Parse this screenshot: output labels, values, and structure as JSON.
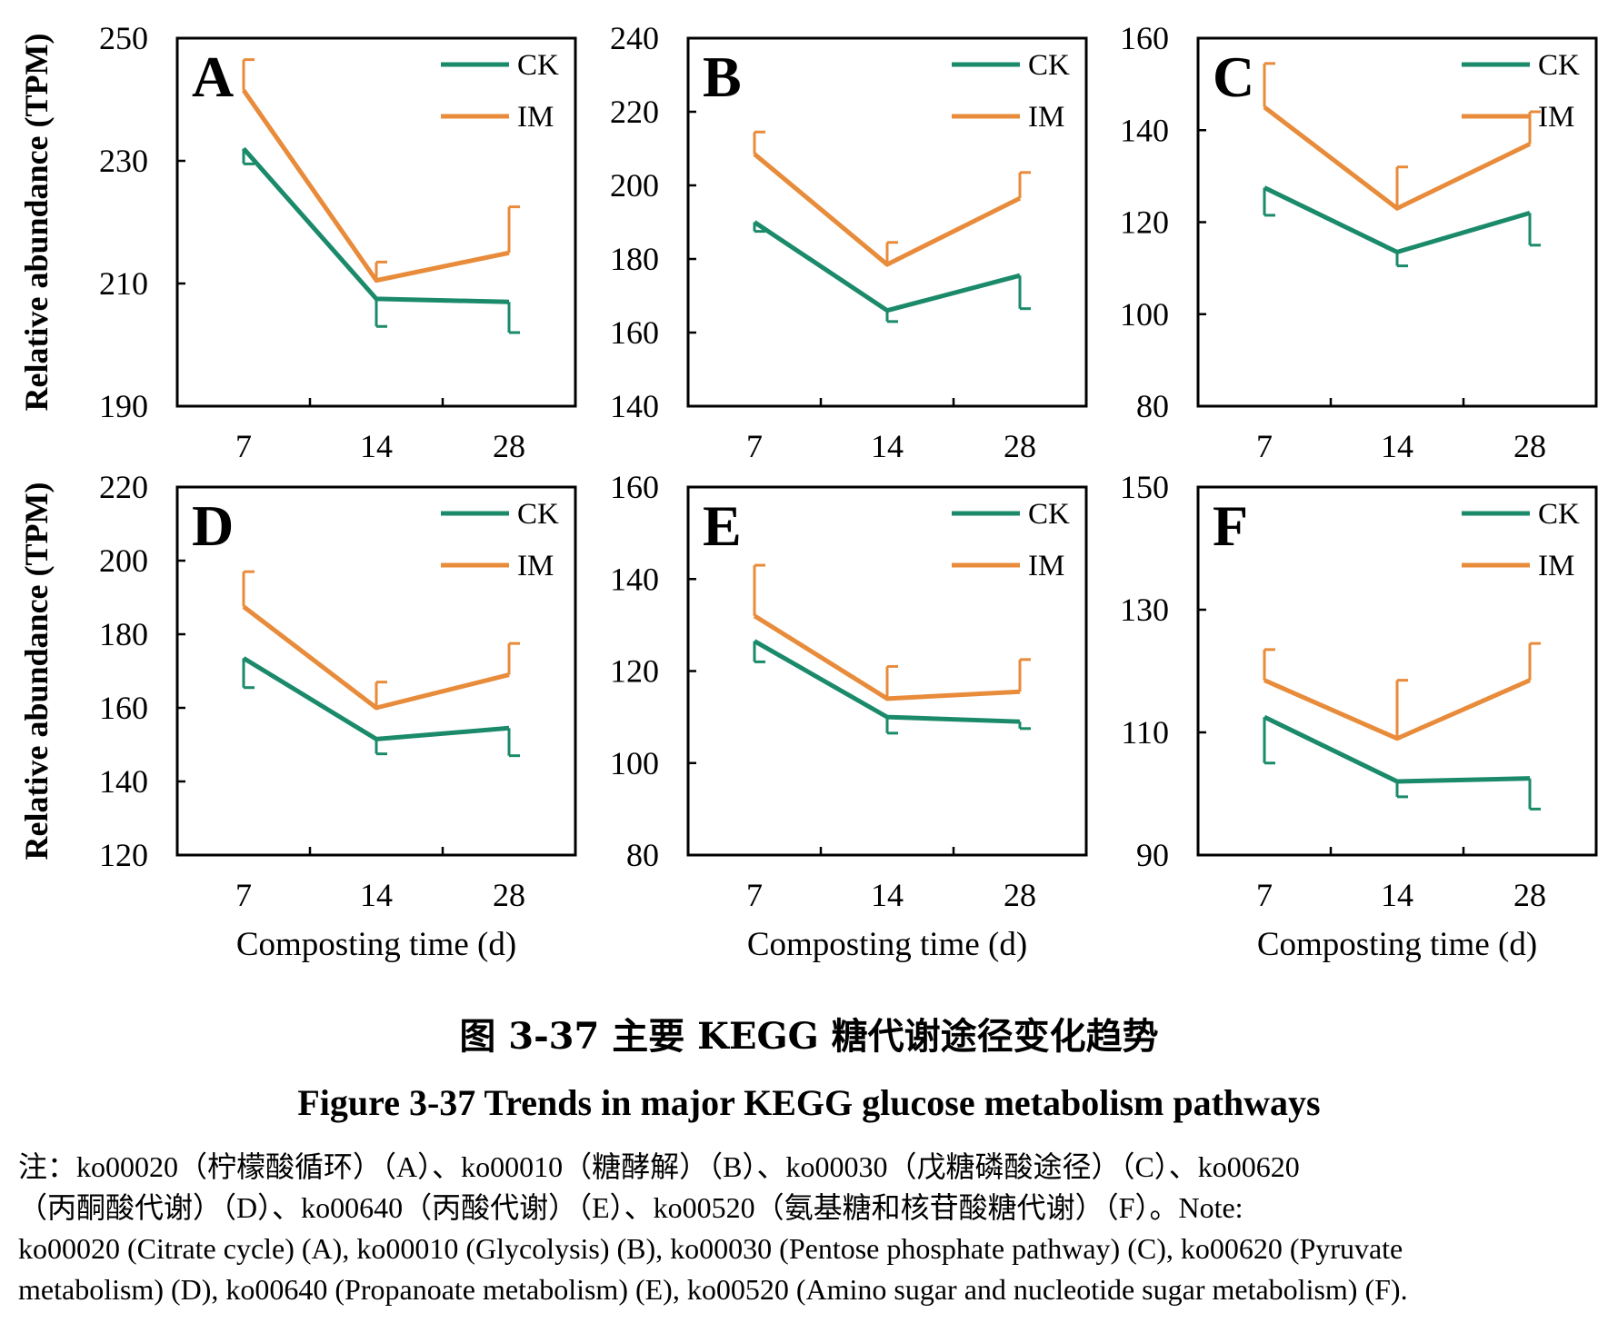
{
  "figure": {
    "caption_cn": "图 3-37 主要 KEGG 糖代谢途径变化趋势",
    "caption_en": "Figure 3-37 Trends in major KEGG glucose metabolism pathways",
    "note_lines": [
      "注：ko00020（柠檬酸循环）（A）、ko00010（糖酵解）（B）、ko00030（戊糖磷酸途径）（C）、ko00620",
      "（丙酮酸代谢）（D）、ko00640（丙酸代谢）（E）、ko00520（氨基糖和核苷酸糖代谢）（F）。Note:",
      "ko00020 (Citrate cycle) (A), ko00010 (Glycolysis) (B), ko00030 (Pentose phosphate pathway) (C), ko00620 (Pyruvate",
      "metabolism) (D), ko00640 (Propanoate metabolism)  (E), ko00520 (Amino sugar and nucleotide sugar metabolism) (F)."
    ],
    "colors": {
      "CK": "#1a8a6a",
      "IM": "#e88b3a"
    }
  },
  "chart_data": [
    {
      "type": "line",
      "panel_label": "A",
      "categories": [
        "7",
        "14",
        "28"
      ],
      "ylim": [
        190,
        250
      ],
      "yticks": [
        "190",
        "210",
        "230",
        "250"
      ],
      "ylabel": "Relative abundance (TPM)",
      "xlabel": "",
      "legend": "top-right",
      "grid": false,
      "series": [
        {
          "name": "CK",
          "values": [
            232,
            207.5,
            207
          ],
          "errors": [
            2.5,
            4.5,
            5
          ]
        },
        {
          "name": "IM",
          "values": [
            241.5,
            210.5,
            215
          ],
          "errors": [
            5,
            3,
            7.5
          ]
        }
      ]
    },
    {
      "type": "line",
      "panel_label": "B",
      "categories": [
        "7",
        "14",
        "28"
      ],
      "ylim": [
        140,
        240
      ],
      "yticks": [
        "140",
        "160",
        "180",
        "200",
        "220",
        "240"
      ],
      "ylabel": "",
      "xlabel": "",
      "legend": "top-right",
      "grid": false,
      "series": [
        {
          "name": "CK",
          "values": [
            190,
            166,
            175.5
          ],
          "errors": [
            2.5,
            3,
            9
          ]
        },
        {
          "name": "IM",
          "values": [
            208.5,
            178.5,
            196.5
          ],
          "errors": [
            6,
            6,
            7
          ]
        }
      ]
    },
    {
      "type": "line",
      "panel_label": "C",
      "categories": [
        "7",
        "14",
        "28"
      ],
      "ylim": [
        80,
        160
      ],
      "yticks": [
        "80",
        "100",
        "120",
        "140",
        "160"
      ],
      "ylabel": "",
      "xlabel": "",
      "legend": "top-right",
      "grid": false,
      "series": [
        {
          "name": "CK",
          "values": [
            127.5,
            113.5,
            122
          ],
          "errors": [
            6,
            3,
            7
          ]
        },
        {
          "name": "IM",
          "values": [
            145,
            123,
            137
          ],
          "errors": [
            9.5,
            9,
            7
          ]
        }
      ]
    },
    {
      "type": "line",
      "panel_label": "D",
      "categories": [
        "7",
        "14",
        "28"
      ],
      "ylim": [
        120,
        220
      ],
      "yticks": [
        "120",
        "140",
        "160",
        "180",
        "200",
        "220"
      ],
      "ylabel": "Relative abundance (TPM)",
      "xlabel": "Composting time (d)",
      "legend": "top-right",
      "grid": false,
      "series": [
        {
          "name": "CK",
          "values": [
            173.5,
            151.5,
            154.5
          ],
          "errors": [
            8,
            4,
            7.5
          ]
        },
        {
          "name": "IM",
          "values": [
            187.5,
            160,
            169
          ],
          "errors": [
            9.5,
            7,
            8.5
          ]
        }
      ]
    },
    {
      "type": "line",
      "panel_label": "E",
      "categories": [
        "7",
        "14",
        "28"
      ],
      "ylim": [
        80,
        160
      ],
      "yticks": [
        "80",
        "100",
        "120",
        "140",
        "160"
      ],
      "ylabel": "",
      "xlabel": "Composting time (d)",
      "legend": "top-right",
      "grid": false,
      "series": [
        {
          "name": "CK",
          "values": [
            126.5,
            110,
            109
          ],
          "errors": [
            4.5,
            3.5,
            1.5
          ]
        },
        {
          "name": "IM",
          "values": [
            132,
            114,
            115.5
          ],
          "errors": [
            11,
            7,
            7
          ]
        }
      ]
    },
    {
      "type": "line",
      "panel_label": "F",
      "categories": [
        "7",
        "14",
        "28"
      ],
      "ylim": [
        90,
        150
      ],
      "yticks": [
        "90",
        "110",
        "130",
        "150"
      ],
      "ylabel": "",
      "xlabel": "Composting time (d)",
      "legend": "top-right",
      "grid": false,
      "series": [
        {
          "name": "CK",
          "values": [
            112.5,
            102,
            102.5
          ],
          "errors": [
            7.5,
            2.5,
            5
          ]
        },
        {
          "name": "IM",
          "values": [
            118.5,
            109,
            118.5
          ],
          "errors": [
            5,
            9.5,
            6
          ]
        }
      ]
    }
  ]
}
